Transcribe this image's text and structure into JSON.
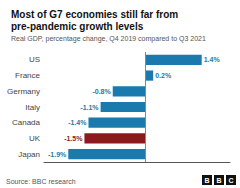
{
  "chart_data": {
    "type": "bar",
    "orientation": "horizontal",
    "title": "Most of G7 economies still far from\npre-pandemic growth levels",
    "subtitle": "Real GDP, percentage change, Q4 2019 compared to Q3 2021",
    "source": "Source: BBC research",
    "logo": "BBC",
    "categories": [
      "US",
      "France",
      "Germany",
      "Italy",
      "Canada",
      "UK",
      "Japan"
    ],
    "values": [
      1.4,
      0.2,
      -0.8,
      -1.1,
      -1.4,
      -1.5,
      -1.9
    ],
    "value_labels": [
      "1.4%",
      "0.2%",
      "-0.8%",
      "-1.1%",
      "-1.4%",
      "-1.5%",
      "-1.9%"
    ],
    "colors": [
      "#1a7aad",
      "#1a7aad",
      "#1a7aad",
      "#1a7aad",
      "#1a7aad",
      "#8b1a1a",
      "#1a7aad"
    ],
    "xlim": [
      -2.5,
      2.1
    ],
    "data_labels": true,
    "tick_labels": "y",
    "grid": false
  }
}
